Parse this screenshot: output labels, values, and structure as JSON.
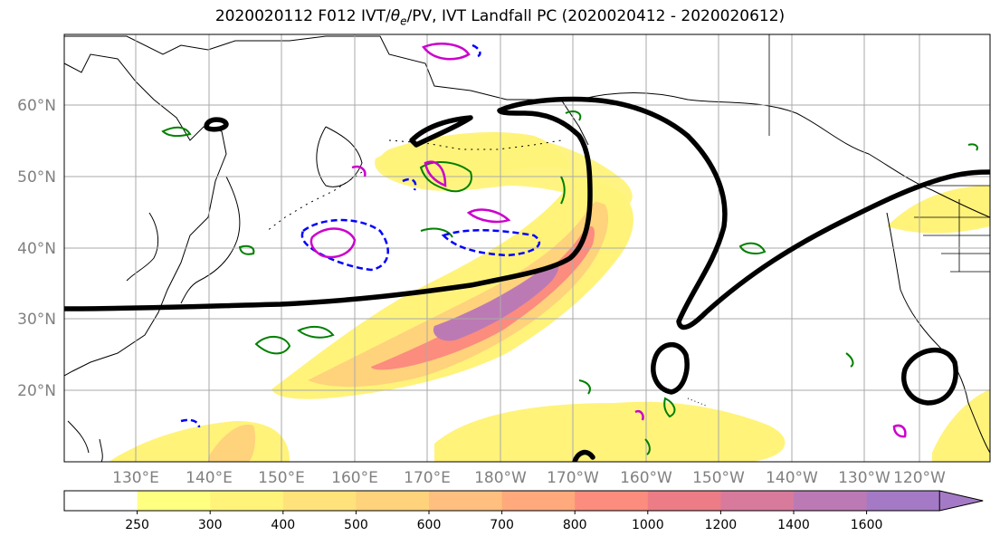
{
  "title": "2020020112 F012 IVT/θe/PV, IVT Landfall PC (2020020412 - 2020020612)",
  "title_parts": {
    "pre": "2020020112 F012 IVT/",
    "theta": "θ",
    "sub": "e",
    "post": "/PV, IVT Landfall PC (2020020412 - 2020020612)"
  },
  "map": {
    "lon_labels": [
      "130°E",
      "140°E",
      "150°E",
      "160°E",
      "170°E",
      "180°W",
      "170°W",
      "160°W",
      "150°W",
      "140°W",
      "130°W",
      "120°W"
    ],
    "lat_labels": [
      "20°N",
      "30°N",
      "40°N",
      "50°N",
      "60°N"
    ],
    "colors": {
      "land_coast": "#000000",
      "pc_contour": "#000000",
      "theta_contour": "#008000",
      "pv_positive": "#cc00cc",
      "pv_negative": "#0000ff",
      "grid": "#aaaaaa",
      "tick_label": "#808080"
    }
  },
  "colorbar": {
    "labels": [
      "250",
      "300",
      "400",
      "500",
      "600",
      "700",
      "800",
      "1000",
      "1200",
      "1400",
      "1600"
    ],
    "colors": [
      "#ffffff",
      "#ffff80",
      "#fff37a",
      "#ffe27a",
      "#ffd27c",
      "#ffbf7e",
      "#ffa97c",
      "#fb8c7e",
      "#ec7d86",
      "#d87a9c",
      "#bc7ab4",
      "#a47ac6"
    ]
  }
}
